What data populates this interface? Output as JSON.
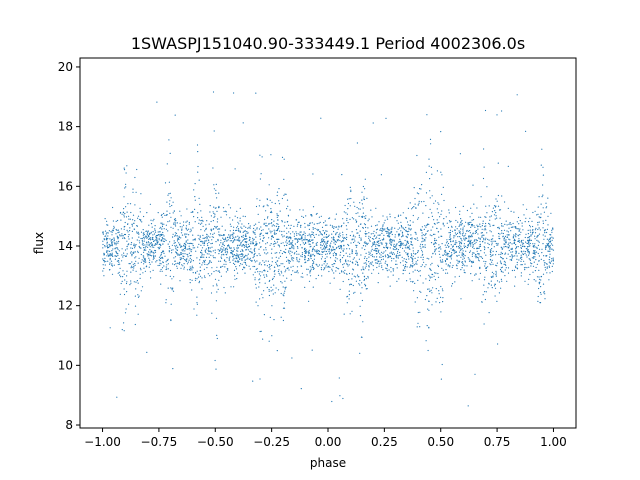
{
  "chart_data": {
    "type": "scatter",
    "title": "1SWASPJ151040.90-333449.1 Period 4002306.0s",
    "xlabel": "phase",
    "ylabel": "flux",
    "xlim": [
      -1.1,
      1.1
    ],
    "ylim": [
      7.9,
      20.3
    ],
    "xticks": [
      -1.0,
      -0.75,
      -0.5,
      -0.25,
      0.0,
      0.25,
      0.5,
      0.75,
      1.0
    ],
    "xtick_labels": [
      "−1.00",
      "−0.75",
      "−0.50",
      "−0.25",
      "0.00",
      "0.25",
      "0.50",
      "0.75",
      "1.00"
    ],
    "yticks": [
      8,
      10,
      12,
      14,
      16,
      18,
      20
    ],
    "ytick_labels": [
      "8",
      "10",
      "12",
      "14",
      "16",
      "18",
      "20"
    ],
    "grid": false,
    "series": [
      {
        "color": "#1f77b4",
        "x_range": [
          -1.0,
          1.0
        ],
        "baseline_flux": 14.0,
        "typical_spread": 0.9,
        "flux_range": [
          8.5,
          19.7
        ],
        "high_scatter_phases": [
          -0.9,
          -0.85,
          -0.7,
          -0.58,
          -0.5,
          -0.3,
          -0.25,
          -0.2,
          0.1,
          0.15,
          0.4,
          0.45,
          0.5,
          0.7,
          0.75,
          0.95
        ]
      }
    ]
  }
}
